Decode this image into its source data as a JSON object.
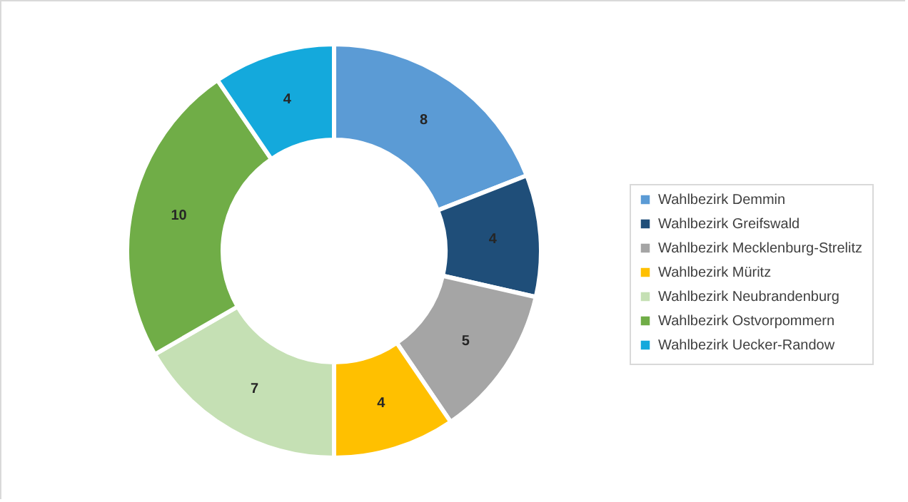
{
  "chart_data": {
    "type": "donut",
    "categories": [
      "Wahlbezirk Demmin",
      "Wahlbezirk Greifswald",
      "Wahlbezirk Mecklenburg-Strelitz",
      "Wahlbezirk Müritz",
      "Wahlbezirk Neubrandenburg",
      "Wahlbezirk Ostvorpommern",
      "Wahlbezirk Uecker-Randow"
    ],
    "values": [
      8,
      4,
      5,
      4,
      7,
      10,
      4
    ],
    "colors": [
      "#5b9bd5",
      "#1f4e79",
      "#a5a5a5",
      "#ffc000",
      "#c5e0b4",
      "#70ad47",
      "#14a9dc"
    ],
    "data_labels": true,
    "legend": "right"
  }
}
